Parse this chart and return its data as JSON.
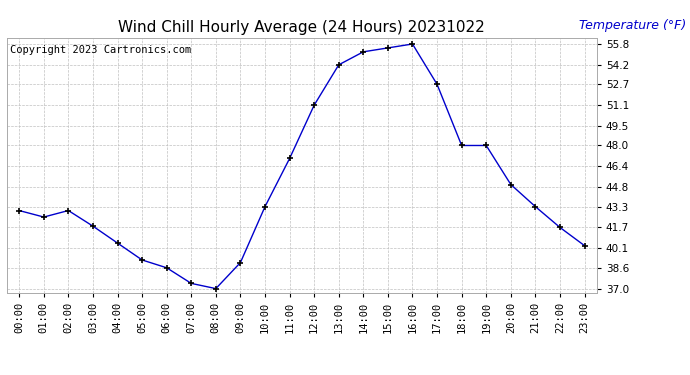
{
  "title": "Wind Chill Hourly Average (24 Hours) 20231022",
  "copyright_text": "Copyright 2023 Cartronics.com",
  "ylabel": "Temperature (°F)",
  "ylabel_color": "#0000cc",
  "hours": [
    "00:00",
    "01:00",
    "02:00",
    "03:00",
    "04:00",
    "05:00",
    "06:00",
    "07:00",
    "08:00",
    "09:00",
    "10:00",
    "11:00",
    "12:00",
    "13:00",
    "14:00",
    "15:00",
    "16:00",
    "17:00",
    "18:00",
    "19:00",
    "20:00",
    "21:00",
    "22:00",
    "23:00"
  ],
  "values": [
    43.0,
    42.5,
    43.0,
    41.8,
    40.5,
    39.2,
    38.6,
    37.4,
    37.0,
    39.0,
    43.3,
    47.0,
    51.1,
    54.2,
    55.2,
    55.5,
    55.8,
    52.7,
    48.0,
    48.0,
    45.0,
    43.3,
    41.7,
    40.3
  ],
  "line_color": "#0000cc",
  "marker": "+",
  "marker_color": "#000000",
  "ylim_min": 37.0,
  "ylim_max": 55.8,
  "yticks": [
    37.0,
    38.6,
    40.1,
    41.7,
    43.3,
    44.8,
    46.4,
    48.0,
    49.5,
    51.1,
    52.7,
    54.2,
    55.8
  ],
  "bg_color": "#ffffff",
  "grid_color": "#c0c0c0",
  "title_fontsize": 11,
  "tick_fontsize": 7.5,
  "copyright_fontsize": 7.5,
  "ylabel_fontsize": 9
}
